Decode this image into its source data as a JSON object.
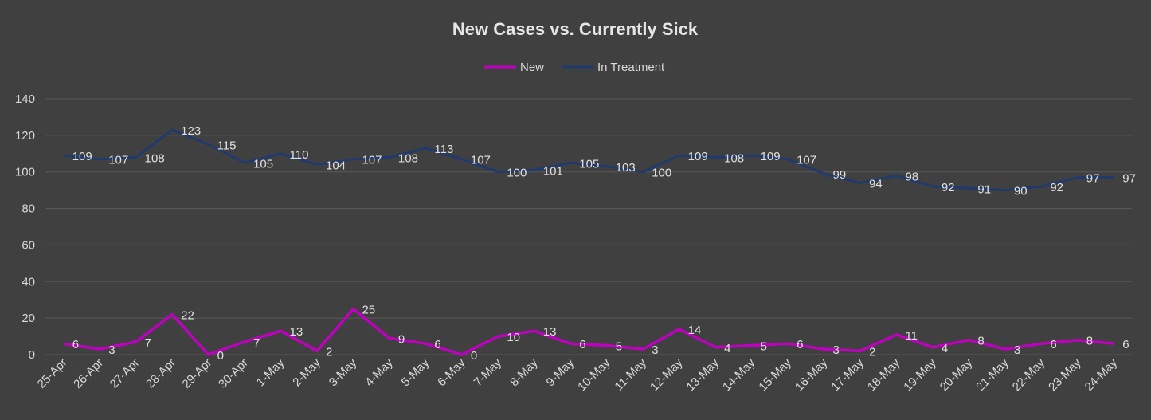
{
  "chart_data": {
    "type": "line",
    "title": "New Cases vs. Currently Sick",
    "categories": [
      "25-Apr",
      "26-Apr",
      "27-Apr",
      "28-Apr",
      "29-Apr",
      "30-Apr",
      "1-May",
      "2-May",
      "3-May",
      "4-May",
      "5-May",
      "6-May",
      "7-May",
      "8-May",
      "9-May",
      "10-May",
      "11-May",
      "12-May",
      "13-May",
      "14-May",
      "15-May",
      "16-May",
      "17-May",
      "18-May",
      "19-May",
      "20-May",
      "21-May",
      "22-May",
      "23-May",
      "24-May"
    ],
    "series": [
      {
        "name": "New",
        "color": "#c000c0",
        "values": [
          6,
          3,
          7,
          22,
          0,
          7,
          13,
          2,
          25,
          9,
          6,
          0,
          10,
          13,
          6,
          5,
          3,
          14,
          4,
          5,
          6,
          3,
          2,
          11,
          4,
          8,
          3,
          6,
          8,
          6
        ]
      },
      {
        "name": "In Treatment",
        "color": "#1f3a6e",
        "values": [
          109,
          107,
          108,
          123,
          115,
          105,
          110,
          104,
          107,
          108,
          113,
          107,
          100,
          101,
          105,
          103,
          100,
          109,
          108,
          109,
          107,
          99,
          94,
          98,
          92,
          91,
          90,
          92,
          97,
          97
        ]
      }
    ],
    "ylim": [
      0,
      140
    ],
    "yticks": [
      0,
      20,
      40,
      60,
      80,
      100,
      120,
      140
    ],
    "grid": true,
    "legend_position": "top"
  }
}
